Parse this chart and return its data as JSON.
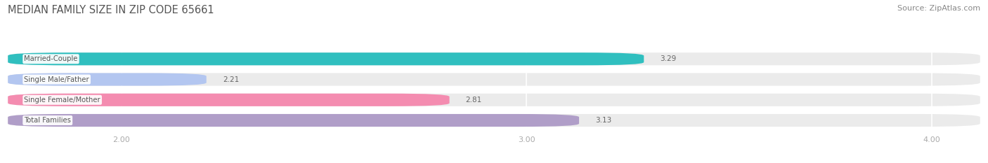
{
  "title": "MEDIAN FAMILY SIZE IN ZIP CODE 65661",
  "source": "Source: ZipAtlas.com",
  "categories": [
    "Married-Couple",
    "Single Male/Father",
    "Single Female/Mother",
    "Total Families"
  ],
  "values": [
    3.29,
    2.21,
    2.81,
    3.13
  ],
  "bar_colors": [
    "#30bfbf",
    "#b3c6f0",
    "#f48cb0",
    "#b09ec8"
  ],
  "xmin": 1.72,
  "xmax": 4.12,
  "xticks": [
    2.0,
    3.0,
    4.0
  ],
  "bar_height": 0.62,
  "background_color": "#ffffff",
  "bar_bg_color": "#ebebeb",
  "title_color": "#555555",
  "source_color": "#888888",
  "label_color": "#555555",
  "value_color": "#666666",
  "grid_color": "#d8d8d8",
  "tick_color": "#aaaaaa"
}
